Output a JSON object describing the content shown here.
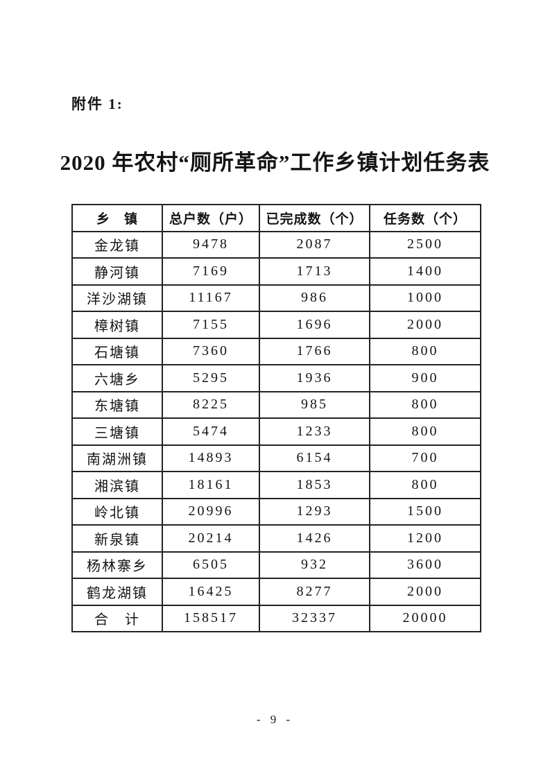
{
  "page": {
    "attachment_label": "附件 1:",
    "title": "2020 年农村“厕所革命”工作乡镇计划任务表",
    "page_number": "- 9 -"
  },
  "table": {
    "headers": [
      "乡　镇",
      "总户数（户）",
      "已完成数（个）",
      "任务数（个）"
    ],
    "rows": [
      {
        "township": "金龙镇",
        "households": "9478",
        "completed": "2087",
        "tasks": "2500"
      },
      {
        "township": "静河镇",
        "households": "7169",
        "completed": "1713",
        "tasks": "1400"
      },
      {
        "township": "洋沙湖镇",
        "households": "11167",
        "completed": "986",
        "tasks": "1000"
      },
      {
        "township": "樟树镇",
        "households": "7155",
        "completed": "1696",
        "tasks": "2000"
      },
      {
        "township": "石塘镇",
        "households": "7360",
        "completed": "1766",
        "tasks": "800"
      },
      {
        "township": "六塘乡",
        "households": "5295",
        "completed": "1936",
        "tasks": "900"
      },
      {
        "township": "东塘镇",
        "households": "8225",
        "completed": "985",
        "tasks": "800"
      },
      {
        "township": "三塘镇",
        "households": "5474",
        "completed": "1233",
        "tasks": "800"
      },
      {
        "township": "南湖洲镇",
        "households": "14893",
        "completed": "6154",
        "tasks": "700"
      },
      {
        "township": "湘滨镇",
        "households": "18161",
        "completed": "1853",
        "tasks": "800"
      },
      {
        "township": "岭北镇",
        "households": "20996",
        "completed": "1293",
        "tasks": "1500"
      },
      {
        "township": "新泉镇",
        "households": "20214",
        "completed": "1426",
        "tasks": "1200"
      },
      {
        "township": "杨林寨乡",
        "households": "6505",
        "completed": "932",
        "tasks": "3600"
      },
      {
        "township": "鹤龙湖镇",
        "households": "16425",
        "completed": "8277",
        "tasks": "2000"
      },
      {
        "township": "合　计",
        "households": "158517",
        "completed": "32337",
        "tasks": "20000",
        "is_total": true
      }
    ]
  }
}
